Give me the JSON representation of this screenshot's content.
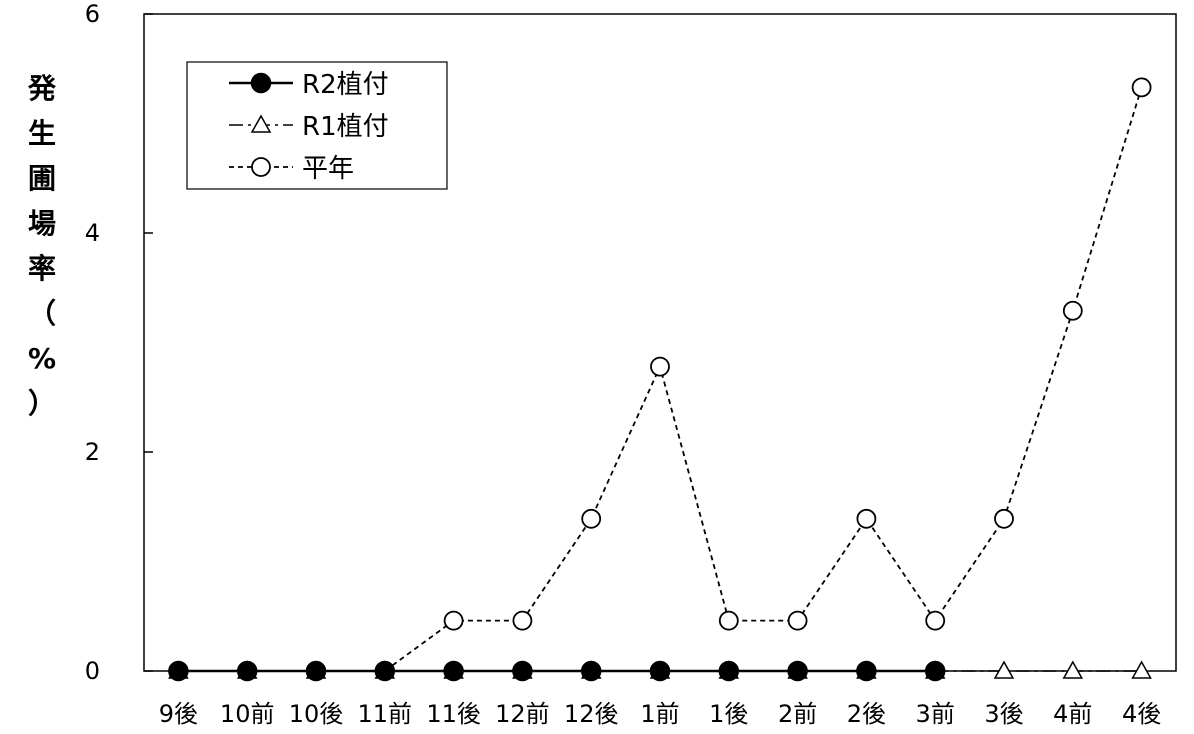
{
  "chart_data": {
    "type": "line",
    "categories": [
      "9後",
      "10前",
      "10後",
      "11前",
      "11後",
      "12前",
      "12後",
      "1前",
      "1後",
      "2前",
      "2後",
      "3前",
      "3後",
      "4前",
      "4後"
    ],
    "ylabel": "発生圃場率（%）",
    "ylabel_chars": [
      "発",
      "生",
      "圃",
      "場",
      "率",
      "（",
      "%",
      "）"
    ],
    "ylim": [
      0,
      6
    ],
    "yticks": [
      0,
      2,
      4,
      6
    ],
    "grid": false,
    "legend_position": "top-left",
    "series": [
      {
        "name": "R2植付",
        "marker": "filled-circle",
        "line": "solid",
        "values": [
          0,
          0,
          0,
          0,
          0,
          0,
          0,
          0,
          0,
          0,
          0,
          0,
          null,
          null,
          null
        ]
      },
      {
        "name": "R1植付",
        "marker": "open-triangle",
        "line": "dash-dot",
        "values": [
          0,
          0,
          0,
          0,
          0,
          0,
          0,
          0,
          0,
          0,
          0,
          0,
          0,
          0,
          0
        ]
      },
      {
        "name": "平年",
        "marker": "open-circle",
        "line": "dashed",
        "values": [
          0,
          0,
          0,
          0,
          0.46,
          0.46,
          1.39,
          2.78,
          0.46,
          0.46,
          1.39,
          0.46,
          1.39,
          3.29,
          5.33
        ]
      }
    ]
  }
}
